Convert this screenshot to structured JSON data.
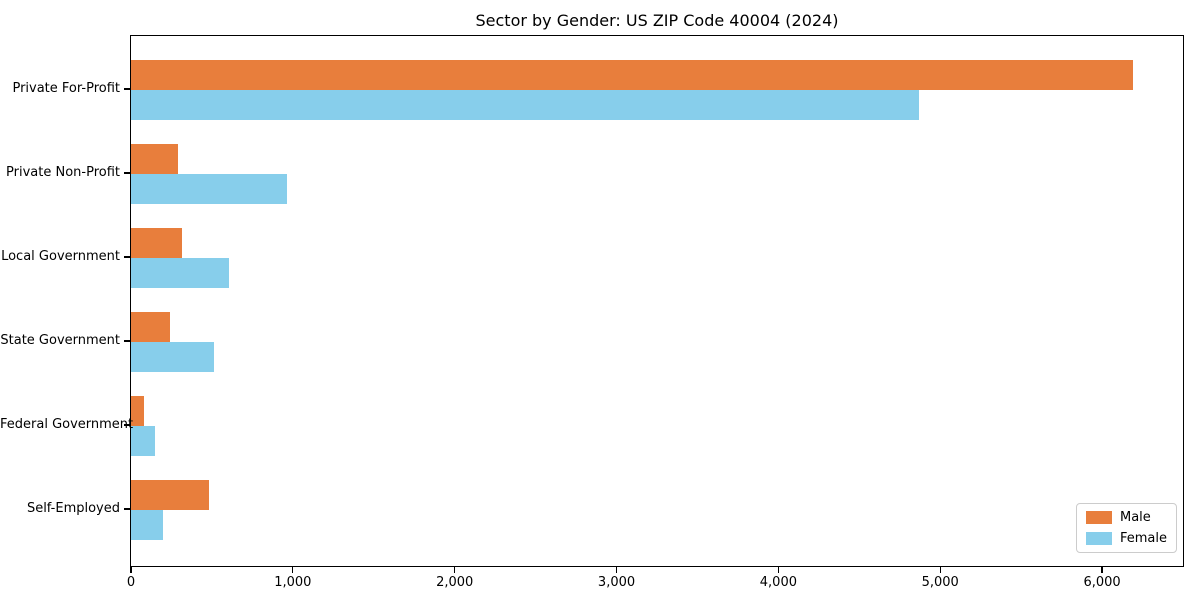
{
  "chart_data": {
    "type": "bar",
    "orientation": "horizontal",
    "title": "Sector by Gender: US ZIP Code 40004 (2024)",
    "categories": [
      "Private For-Profit",
      "Private Non-Profit",
      "Local Government",
      "State Government",
      "Federal Government",
      "Self-Employed"
    ],
    "series": [
      {
        "name": "Male",
        "color": "#E87E3C",
        "values": [
          6190,
          290,
          315,
          240,
          80,
          480
        ]
      },
      {
        "name": "Female",
        "color": "#87CEEB",
        "values": [
          4870,
          965,
          605,
          515,
          145,
          200
        ]
      }
    ],
    "xlabel": "",
    "ylabel": "",
    "xlim": [
      0,
      6500
    ],
    "xticks": [
      0,
      1000,
      2000,
      3000,
      4000,
      5000,
      6000
    ],
    "xtick_labels": [
      "0",
      "1,000",
      "2,000",
      "3,000",
      "4,000",
      "5,000",
      "6,000"
    ],
    "grid": false,
    "legend_position": "lower right",
    "background_color": "#ffffff",
    "spine_color": "#000000"
  }
}
